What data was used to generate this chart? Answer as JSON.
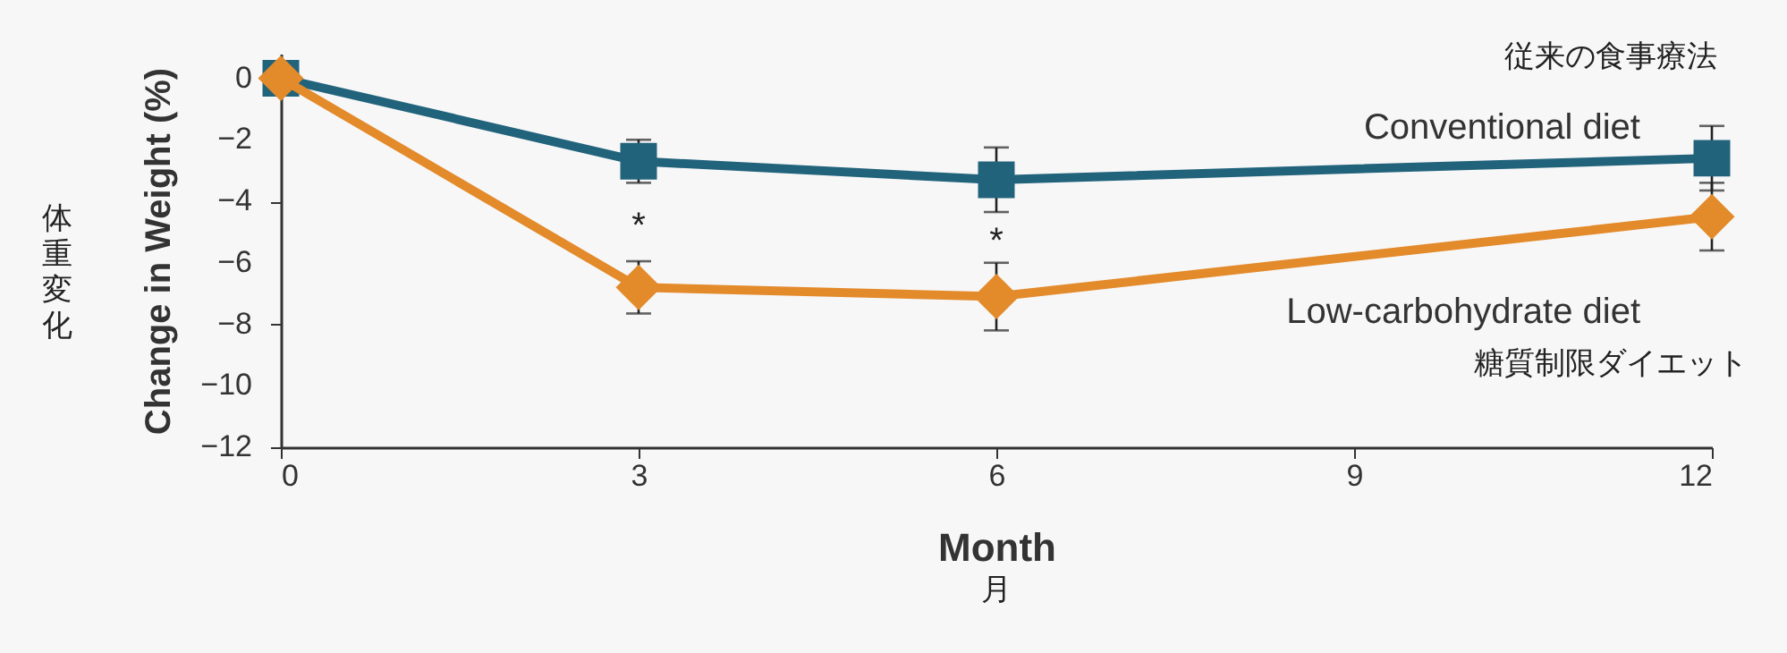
{
  "chart_data": {
    "type": "line",
    "xlabel": "Month",
    "ylabel": "Change in Weight (%)",
    "x": [
      0,
      3,
      6,
      12
    ],
    "xlim": [
      0,
      12
    ],
    "xticks": [
      0,
      3,
      6,
      9,
      12
    ],
    "ylim": [
      -12,
      0.8
    ],
    "yticks": [
      0,
      {
        "value": -2,
        "label": "−2"
      },
      {
        "value": -4,
        "label": "−4"
      },
      {
        "value": -6,
        "label": "−6"
      },
      {
        "value": -8,
        "label": "−8"
      },
      {
        "value": -10,
        "label": "−10"
      },
      {
        "value": -12,
        "label": "−12"
      }
    ],
    "grid": false,
    "line_style": "solid",
    "series": [
      {
        "name": "Conventional diet",
        "color": "#22637c",
        "marker": "square",
        "values": [
          0,
          -2.7,
          -3.3,
          -2.6
        ],
        "errors": [
          null,
          0.7,
          1.05,
          1.05
        ]
      },
      {
        "name": "Low-carbohydrate diet",
        "color": "#e38a2b",
        "marker": "diamond",
        "values": [
          0,
          -6.8,
          -7.1,
          -4.5
        ],
        "errors": [
          null,
          0.85,
          1.1,
          1.1
        ]
      }
    ],
    "annotations": [
      "*",
      "*",
      "従来の食事療法",
      "糖質制限ダイエット",
      "体重変化",
      "月"
    ]
  }
}
